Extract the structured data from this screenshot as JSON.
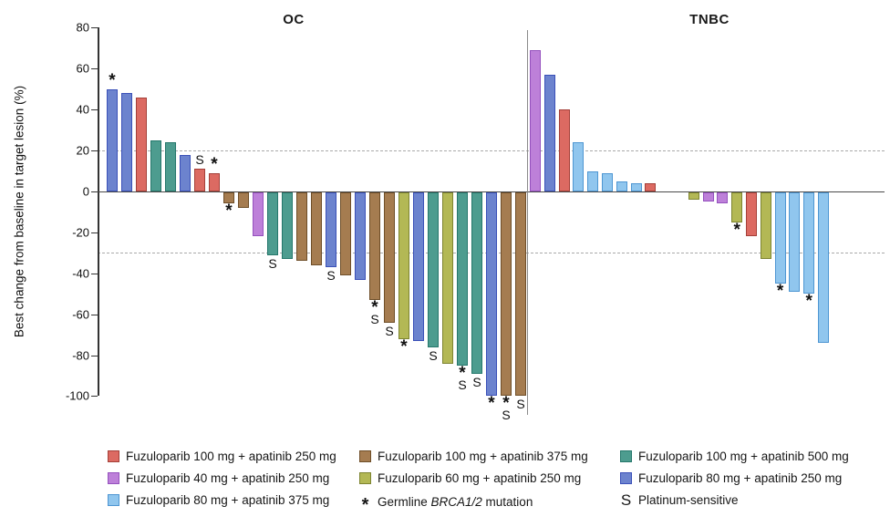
{
  "chart_data": {
    "type": "bar",
    "subtype": "waterfall",
    "ylabel": "Best change from baseline in target lesion (%)",
    "ylim": [
      -100,
      80
    ],
    "yticks": [
      80,
      60,
      40,
      20,
      0,
      -20,
      -40,
      -60,
      -80,
      -100
    ],
    "reference_lines_pct": [
      20,
      -30
    ],
    "grid": "off",
    "legend_position": "bottom",
    "marker_meanings": {
      "*": "Germline BRCA1/2 mutation",
      "S": "Platinum-sensitive"
    },
    "colors": {
      "red": {
        "fill": "#DC6A62",
        "stroke": "#A43F38",
        "label": "Fuzuloparib 100 mg + apatinib 250 mg"
      },
      "brown": {
        "fill": "#A57C50",
        "stroke": "#6E4E28",
        "label": "Fuzuloparib 100 mg + apatinib 375 mg"
      },
      "teal": {
        "fill": "#4D9C8F",
        "stroke": "#25776B",
        "label": "Fuzuloparib 100 mg + apatinib 500 mg"
      },
      "purple": {
        "fill": "#BD80D9",
        "stroke": "#9551BE",
        "label": "Fuzuloparib 40 mg + apatinib 250 mg"
      },
      "olive": {
        "fill": "#B3B855",
        "stroke": "#7D8430",
        "label": "Fuzuloparib 60 mg + apatinib 250 mg"
      },
      "blue": {
        "fill": "#6C83CE",
        "stroke": "#3A50B8",
        "label": "Fuzuloparib 80 mg + apatinib 250 mg"
      },
      "lightblue": {
        "fill": "#90C6EE",
        "stroke": "#4E96D2",
        "label": "Fuzuloparib 80 mg + apatinib 375 mg"
      }
    },
    "panels": [
      {
        "title": "OC",
        "bars": [
          [
            50,
            "blue",
            "*"
          ],
          [
            48,
            "blue",
            ""
          ],
          [
            46,
            "red",
            ""
          ],
          [
            25,
            "teal",
            ""
          ],
          [
            24,
            "teal",
            ""
          ],
          [
            18,
            "blue",
            ""
          ],
          [
            11,
            "red",
            "S"
          ],
          [
            9,
            "red",
            "*"
          ],
          [
            -6,
            "brown",
            "*"
          ],
          [
            -8,
            "brown",
            ""
          ],
          [
            -22,
            "purple",
            ""
          ],
          [
            -31,
            "teal",
            "S"
          ],
          [
            -33,
            "teal",
            ""
          ],
          [
            -34,
            "brown",
            ""
          ],
          [
            -36,
            "brown",
            ""
          ],
          [
            -37,
            "blue",
            "S"
          ],
          [
            -41,
            "brown",
            ""
          ],
          [
            -43,
            "blue",
            ""
          ],
          [
            -53,
            "brown",
            "*S"
          ],
          [
            -64,
            "brown",
            "S"
          ],
          [
            -72,
            "olive",
            "*"
          ],
          [
            -73,
            "blue",
            ""
          ],
          [
            -76,
            "teal",
            "S"
          ],
          [
            -84,
            "olive",
            ""
          ],
          [
            -85,
            "teal",
            "*S"
          ],
          [
            -89,
            "teal",
            "S"
          ],
          [
            -100,
            "blue",
            "*"
          ],
          [
            -100,
            "brown",
            "*S"
          ],
          [
            -100,
            "brown",
            "S"
          ]
        ]
      },
      {
        "title": "TNBC",
        "bars": [
          [
            69,
            "purple",
            ""
          ],
          [
            57,
            "blue",
            ""
          ],
          [
            40,
            "red",
            ""
          ],
          [
            24,
            "lightblue",
            ""
          ],
          [
            10,
            "lightblue",
            ""
          ],
          [
            9,
            "lightblue",
            ""
          ],
          [
            5,
            "lightblue",
            ""
          ],
          [
            4,
            "lightblue",
            ""
          ],
          [
            4,
            "red",
            ""
          ],
          [
            0,
            "spacer",
            ""
          ],
          [
            0,
            "spacer",
            ""
          ],
          [
            -4,
            "olive",
            ""
          ],
          [
            -5,
            "purple",
            ""
          ],
          [
            -6,
            "purple",
            ""
          ],
          [
            -15,
            "olive",
            "*"
          ],
          [
            -22,
            "red",
            ""
          ],
          [
            -33,
            "olive",
            ""
          ],
          [
            -45,
            "lightblue",
            "*"
          ],
          [
            -49,
            "lightblue",
            ""
          ],
          [
            -50,
            "lightblue",
            "*"
          ],
          [
            -74,
            "lightblue",
            ""
          ]
        ]
      }
    ],
    "legend": [
      {
        "col": 0,
        "row": 0,
        "swatch": "red"
      },
      {
        "col": 0,
        "row": 1,
        "swatch": "purple"
      },
      {
        "col": 0,
        "row": 2,
        "swatch": "lightblue"
      },
      {
        "col": 1,
        "row": 0,
        "swatch": "brown"
      },
      {
        "col": 1,
        "row": 1,
        "swatch": "olive"
      },
      {
        "col": 1,
        "row": 2,
        "symbol": "*",
        "parts": [
          {
            "t": "Germline ",
            "i": false
          },
          {
            "t": "BRCA1/2",
            "i": true
          },
          {
            "t": " mutation",
            "i": false
          }
        ]
      },
      {
        "col": 2,
        "row": 0,
        "swatch": "teal"
      },
      {
        "col": 2,
        "row": 1,
        "swatch": "blue"
      },
      {
        "col": 2,
        "row": 2,
        "symbol": "S",
        "parts": [
          {
            "t": "Platinum-sensitive",
            "i": false
          }
        ]
      }
    ]
  }
}
